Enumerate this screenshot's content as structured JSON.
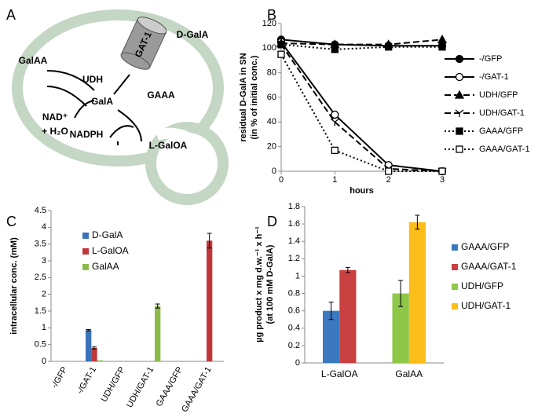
{
  "diagram": {
    "panel": "A",
    "texts": [
      "D-GalA",
      "GAT-1",
      "GalAA",
      "UDH",
      "GalA",
      "GAAA",
      "NAD⁺",
      "+ H₂O",
      "NADPH",
      "L-GalOA"
    ]
  },
  "chart_data": [
    {
      "type": "line",
      "panel": "B",
      "ylabel": [
        "residual D-GalA in SN",
        "(in % of initial conc.)"
      ],
      "xlabel": "hours",
      "x": [
        0,
        1,
        2,
        3
      ],
      "xlim": [
        0,
        3
      ],
      "xticks": [
        0,
        1,
        2,
        3
      ],
      "ylim": [
        0,
        120
      ],
      "yticks": [
        0,
        20,
        40,
        60,
        80,
        100,
        120
      ],
      "series": [
        {
          "name": "-/GFP",
          "color": "#000000",
          "dash": "solid",
          "marker": "circle",
          "filled": true,
          "values": [
            107,
            103,
            102,
            102
          ]
        },
        {
          "name": "-/GAT-1",
          "color": "#000000",
          "dash": "solid",
          "marker": "circle",
          "filled": false,
          "values": [
            105,
            46,
            5,
            0
          ]
        },
        {
          "name": "UDH/GFP",
          "color": "#000000",
          "dash": "dashed",
          "marker": "triangle",
          "filled": true,
          "values": [
            104,
            103,
            103,
            107
          ]
        },
        {
          "name": "UDH/GAT-1",
          "color": "#000000",
          "dash": "dashed",
          "marker": "tick",
          "filled": false,
          "values": [
            103,
            40,
            2,
            0
          ]
        },
        {
          "name": "GAAA/GFP",
          "color": "#000000",
          "dash": "dotted",
          "marker": "square",
          "filled": true,
          "values": [
            103,
            99,
            101,
            101
          ]
        },
        {
          "name": "GAAA/GAT-1",
          "color": "#000000",
          "dash": "dotted",
          "marker": "square",
          "filled": false,
          "values": [
            95,
            17,
            0,
            0
          ]
        }
      ]
    },
    {
      "type": "bar",
      "panel": "C",
      "ylabel": [
        "intracellular conc. (mM)"
      ],
      "categories": [
        "-/GFP",
        "-/GAT-1",
        "UDH/GFP",
        "UDH/GAT-1",
        "GAAA/GFP",
        "GAAA/GAT-1"
      ],
      "ylim": [
        0,
        4.5
      ],
      "yticks": [
        0,
        0.5,
        1,
        1.5,
        2,
        2.5,
        3,
        3.5,
        4,
        4.5
      ],
      "legend": "upper left",
      "series": [
        {
          "name": "D-GalA",
          "color": "#3b73b9",
          "values": [
            0,
            0.93,
            0,
            0,
            0,
            0
          ],
          "errors": [
            0,
            0.02,
            0,
            0,
            0,
            0
          ]
        },
        {
          "name": "L-GalOA",
          "color": "#c0373b",
          "values": [
            0,
            0.4,
            0,
            0,
            0,
            3.6
          ],
          "errors": [
            0,
            0.03,
            0,
            0,
            0,
            0.22
          ]
        },
        {
          "name": "GalAA",
          "color": "#8dbb4a",
          "values": [
            0,
            0.03,
            0,
            1.65,
            0,
            0
          ],
          "errors": [
            0,
            0,
            0,
            0.06,
            0,
            0
          ]
        }
      ]
    },
    {
      "type": "bar",
      "panel": "D",
      "ylabel": [
        "µg product x mg d.w.⁻¹ x h⁻¹",
        "(at 100 mM D-GalA)"
      ],
      "categories": [
        "L-GalOA",
        "GalAA"
      ],
      "ylim": [
        0,
        1.8
      ],
      "yticks": [
        0,
        0.2,
        0.4,
        0.6,
        0.8,
        1,
        1.2,
        1.4,
        1.6,
        1.8
      ],
      "legend": "right",
      "series": [
        {
          "name": "GAAA/GFP",
          "color": "#3b78c0",
          "values": [
            0.6,
            null
          ],
          "errors": [
            0.1,
            null
          ]
        },
        {
          "name": "GAAA/GAT-1",
          "color": "#c8403f",
          "values": [
            1.07,
            null
          ],
          "errors": [
            0.03,
            null
          ]
        },
        {
          "name": "UDH/GFP",
          "color": "#8fc748",
          "values": [
            null,
            0.8
          ],
          "errors": [
            null,
            0.15
          ]
        },
        {
          "name": "UDH/GAT-1",
          "color": "#fbbd1a",
          "values": [
            null,
            1.62
          ],
          "errors": [
            null,
            0.08
          ]
        }
      ]
    }
  ]
}
